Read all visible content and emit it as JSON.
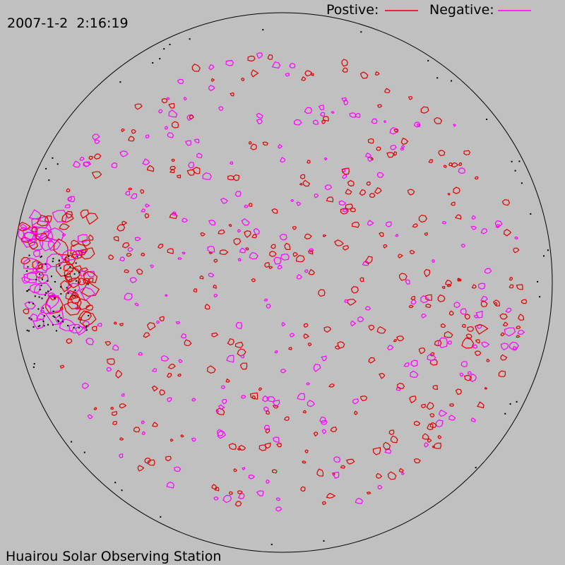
{
  "header": {
    "timestamp": "2007-1-2  2:16:19"
  },
  "legend": {
    "positive": "Postive:",
    "negative": "Negative:"
  },
  "footer": {
    "station": "Huairou Solar Observing Station"
  }
}
